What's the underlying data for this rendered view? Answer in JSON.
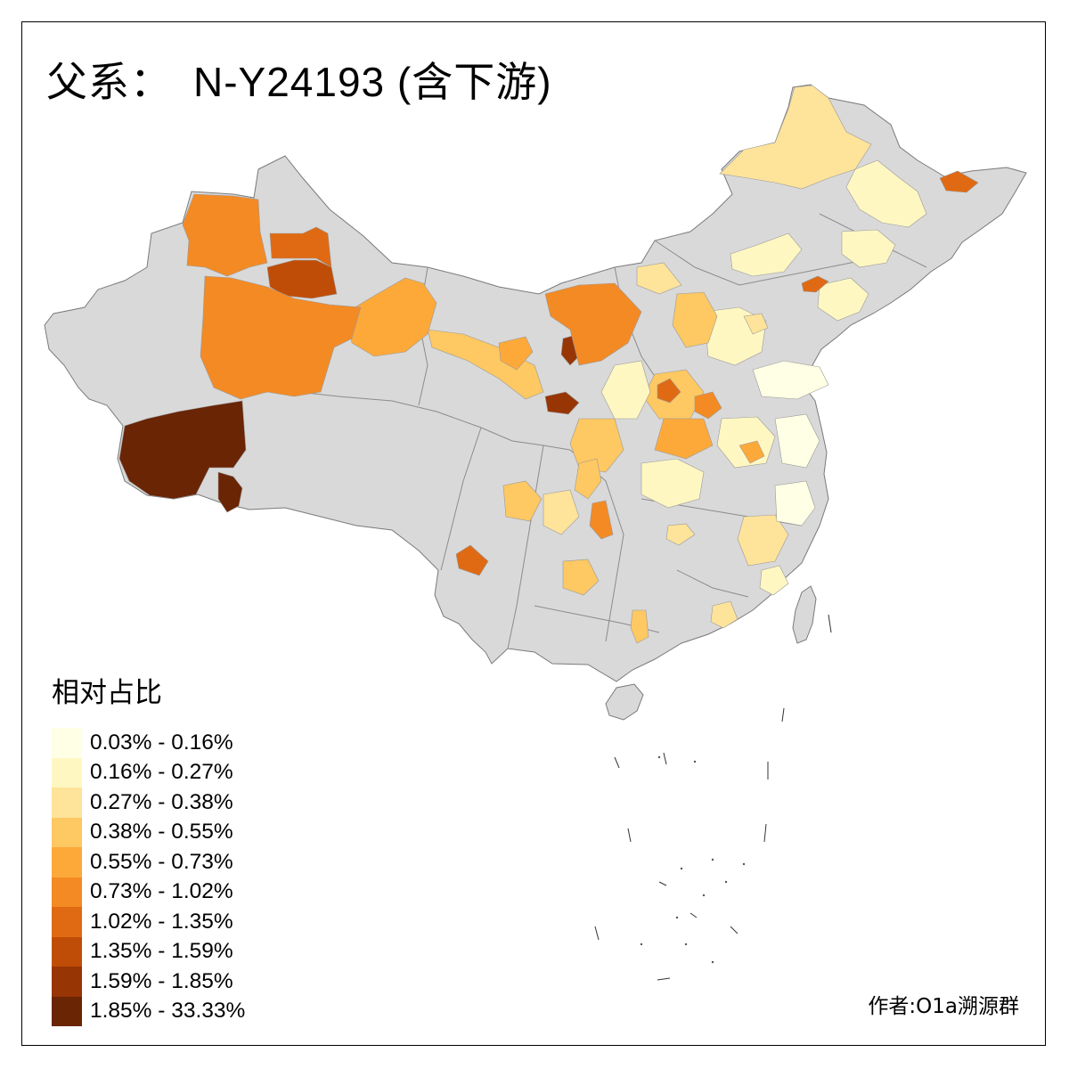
{
  "title": {
    "prefix": "父系：",
    "code": "N-Y24193 (含下游)"
  },
  "legend": {
    "title": "相对占比",
    "items": [
      {
        "label": "0.03% - 0.16%",
        "color": "#FFFFE5"
      },
      {
        "label": "0.16% - 0.27%",
        "color": "#FFF7C2"
      },
      {
        "label": "0.27% - 0.38%",
        "color": "#FEE39A"
      },
      {
        "label": "0.38% - 0.55%",
        "color": "#FEC862"
      },
      {
        "label": "0.55% - 0.73%",
        "color": "#FDA93A"
      },
      {
        "label": "0.73% - 1.02%",
        "color": "#F48A24"
      },
      {
        "label": "1.02% - 1.35%",
        "color": "#E06A13"
      },
      {
        "label": "1.35% - 1.59%",
        "color": "#C04D07"
      },
      {
        "label": "1.59% - 1.85%",
        "color": "#983505"
      },
      {
        "label": "1.85% - 33.33%",
        "color": "#6A2505"
      }
    ]
  },
  "credit": "作者:O1a溯源群",
  "colors": {
    "no_data": "#D9D9D9",
    "border": "#7A7A7A",
    "frame": "#000000"
  }
}
